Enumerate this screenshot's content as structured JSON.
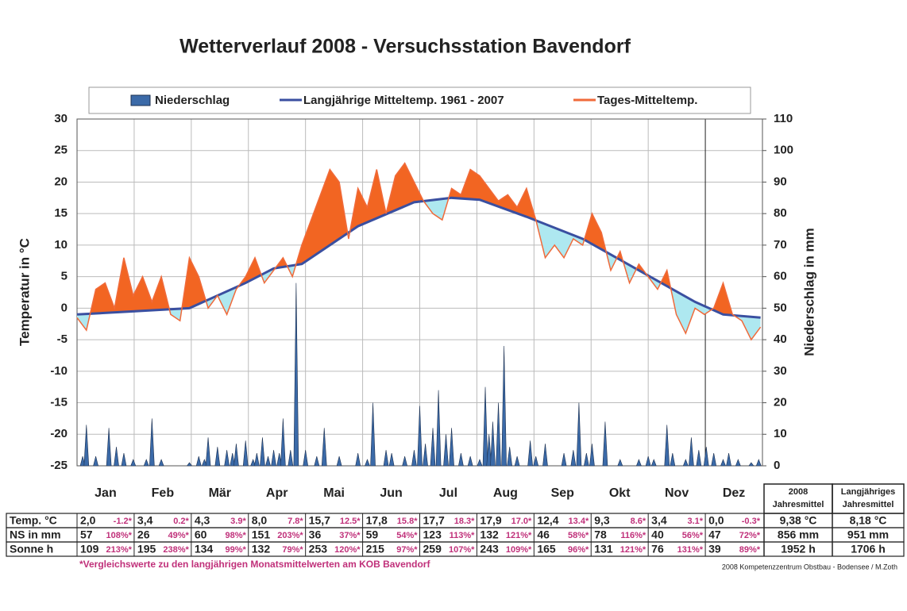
{
  "chart_data": {
    "type": "weather",
    "title": "Wetterverlauf 2008  -  Versuchsstation Bavendorf",
    "ylabel": "Temperatur in °C",
    "y2label": "Niederschlag in mm",
    "categories": [
      "Jan",
      "Feb",
      "Mär",
      "Apr",
      "Mai",
      "Jun",
      "Jul",
      "Aug",
      "Sep",
      "Okt",
      "Nov",
      "Dez"
    ],
    "xlim": [
      0,
      366
    ],
    "ylim": [
      -25,
      30
    ],
    "yticks": [
      -25,
      -20,
      -15,
      -10,
      -5,
      0,
      5,
      10,
      15,
      20,
      25,
      30
    ],
    "y2lim": [
      0,
      110
    ],
    "y2ticks": [
      0,
      10,
      20,
      30,
      40,
      50,
      60,
      70,
      80,
      90,
      100,
      110
    ],
    "grid": true,
    "series": [
      {
        "name": "Niederschlag",
        "kind": "precip",
        "axis": "y2",
        "color": "#3b6aa8",
        "x": [
          3,
          5,
          10,
          17,
          21,
          25,
          30,
          37,
          40,
          45,
          60,
          65,
          68,
          70,
          75,
          80,
          83,
          85,
          90,
          94,
          96,
          99,
          102,
          105,
          108,
          110,
          114,
          117,
          122,
          128,
          132,
          140,
          150,
          155,
          158,
          165,
          168,
          175,
          180,
          183,
          186,
          190,
          193,
          197,
          200,
          205,
          210,
          215,
          218,
          220,
          222,
          225,
          228,
          231,
          235,
          242,
          245,
          250,
          260,
          265,
          268,
          272,
          275,
          282,
          290,
          300,
          305,
          308,
          315,
          318,
          325,
          328,
          332,
          336,
          340,
          345,
          348,
          353,
          360,
          364
        ],
        "values": [
          3,
          13,
          3,
          12,
          6,
          4,
          2,
          2,
          15,
          2,
          1,
          3,
          2,
          9,
          6,
          5,
          4,
          7,
          8,
          2,
          4,
          9,
          3,
          5,
          4,
          15,
          5,
          58,
          5,
          3,
          12,
          3,
          4,
          2,
          20,
          5,
          4,
          3,
          5,
          19,
          7,
          12,
          24,
          10,
          12,
          4,
          3,
          2,
          25,
          10,
          14,
          20,
          38,
          6,
          3,
          8,
          3,
          7,
          4,
          5,
          20,
          4,
          7,
          14,
          2,
          2,
          3,
          2,
          13,
          4,
          2,
          9,
          5,
          6,
          4,
          2,
          4,
          2,
          1,
          2
        ]
      },
      {
        "name": "Langjährige Mitteltemp. 1961 - 2007",
        "kind": "mean",
        "color": "#3a4fa0",
        "x": [
          0,
          30,
          60,
          90,
          105,
          120,
          150,
          180,
          200,
          215,
          240,
          270,
          300,
          330,
          345,
          365
        ],
        "values": [
          -1,
          -0.5,
          0,
          4,
          6.3,
          7,
          13,
          16.8,
          17.5,
          17.2,
          14.5,
          11,
          6,
          1,
          -1,
          -1.5
        ]
      },
      {
        "name": "Tages-Mitteltemp.",
        "kind": "daily",
        "color": "#f06a3a",
        "x": [
          0,
          5,
          10,
          15,
          20,
          25,
          30,
          35,
          40,
          45,
          50,
          55,
          60,
          65,
          70,
          75,
          80,
          85,
          90,
          95,
          100,
          105,
          110,
          115,
          120,
          125,
          130,
          135,
          140,
          145,
          150,
          155,
          160,
          165,
          170,
          175,
          180,
          185,
          190,
          195,
          200,
          205,
          210,
          215,
          220,
          225,
          230,
          235,
          240,
          245,
          250,
          255,
          260,
          265,
          270,
          275,
          280,
          285,
          290,
          295,
          300,
          305,
          310,
          315,
          320,
          325,
          330,
          335,
          340,
          345,
          350,
          355,
          360,
          365
        ],
        "values": [
          -1.5,
          -3.5,
          3,
          4,
          0,
          8,
          2,
          5,
          1,
          5,
          -1,
          -2,
          8,
          5,
          0,
          2,
          -1,
          3,
          5,
          8,
          4,
          6,
          8,
          5,
          10,
          14,
          18,
          22,
          20,
          11,
          19,
          16,
          22,
          15,
          21,
          23,
          20,
          17,
          15,
          14,
          19,
          18,
          22,
          21,
          19,
          17,
          18,
          16,
          19,
          14,
          8,
          10,
          8,
          11,
          10,
          15,
          12,
          6,
          9,
          4,
          7,
          5,
          3,
          6,
          -1,
          -4,
          0,
          -1,
          0,
          4,
          -1,
          -2,
          -5,
          -3
        ]
      }
    ]
  },
  "table": {
    "header_year": [
      "2008",
      "Jahresmittel"
    ],
    "header_long": [
      "Langjähriges",
      "Jahresmittel"
    ],
    "rows": [
      {
        "label": "Temp. °C",
        "cells": [
          [
            "2,0",
            "-1.2*"
          ],
          [
            "3,4",
            "0.2*"
          ],
          [
            "4,3",
            "3.9*"
          ],
          [
            "8,0",
            "7.8*"
          ],
          [
            "15,7",
            "12.5*"
          ],
          [
            "17,8",
            "15.8*"
          ],
          [
            "17,7",
            "18.3*"
          ],
          [
            "17,9",
            "17.0*"
          ],
          [
            "12,4",
            "13.4*"
          ],
          [
            "9,3",
            "8.6*"
          ],
          [
            "3,4",
            "3.1*"
          ],
          [
            "0,0",
            "-0.3*"
          ]
        ],
        "year": "9,38 °C",
        "long": "8,18 °C"
      },
      {
        "label": "NS in mm",
        "cells": [
          [
            "57",
            "108%*"
          ],
          [
            "26",
            "49%*"
          ],
          [
            "60",
            "98%*"
          ],
          [
            "151",
            "203%*"
          ],
          [
            "36",
            "37%*"
          ],
          [
            "59",
            "54%*"
          ],
          [
            "123",
            "113%*"
          ],
          [
            "132",
            "121%*"
          ],
          [
            "46",
            "58%*"
          ],
          [
            "78",
            "116%*"
          ],
          [
            "40",
            "56%*"
          ],
          [
            "47",
            "72%*"
          ]
        ],
        "year": "856 mm",
        "long": "951 mm"
      },
      {
        "label": "Sonne h",
        "cells": [
          [
            "109",
            "213%*"
          ],
          [
            "195",
            "238%*"
          ],
          [
            "134",
            "99%*"
          ],
          [
            "132",
            "79%*"
          ],
          [
            "253",
            "120%*"
          ],
          [
            "215",
            "97%*"
          ],
          [
            "259",
            "107%*"
          ],
          [
            "243",
            "109%*"
          ],
          [
            "165",
            "96%*"
          ],
          [
            "131",
            "121%*"
          ],
          [
            "76",
            "131%*"
          ],
          [
            "39",
            "89%*"
          ]
        ],
        "year": "1952 h",
        "long": "1706 h"
      }
    ],
    "footnote": "*Vergleichswerte zu den langjährigen Monatsmittelwerten am KOB Bavendorf",
    "credit": "2008  Kompetenzzentrum Obstbau - Bodensee / M.Zoth"
  }
}
